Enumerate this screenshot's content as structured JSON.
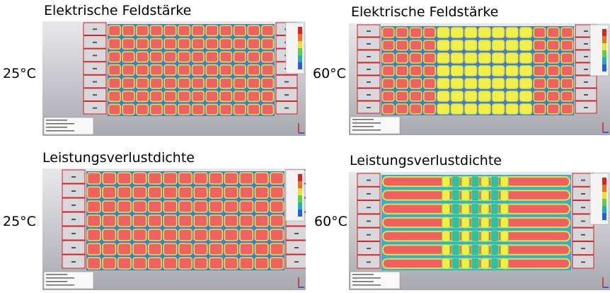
{
  "panels": [
    {
      "title": "Elektrische Feldstärke",
      "temperature": "25°C"
    },
    {
      "title": "Elektrische Feldstärke",
      "temperature": "60°C"
    },
    {
      "title": "Leistungsverlustdichte",
      "temperature": "25°C"
    },
    {
      "title": "Leistungsverlustdichte",
      "temperature": "60°C"
    }
  ]
}
